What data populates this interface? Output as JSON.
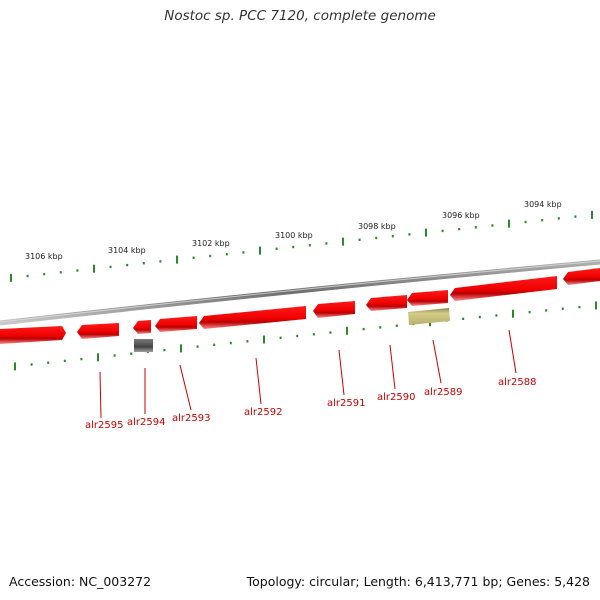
{
  "title": "Nostoc sp. PCC 7120, complete genome",
  "footer": {
    "accession": "Accession: NC_003272",
    "summary": "Topology: circular; Length: 6,413,771 bp; Genes: 5,428"
  },
  "colors": {
    "gene": "#ff0000",
    "backbone": "#7a7a7a",
    "ticks": "#2a8a2a",
    "gene_label": "#cc0000",
    "pseudo_gray": "#5a5a5a",
    "pseudo_olive": "#c8c27a"
  },
  "scale_labels": [
    {
      "text": "3106 kbp"
    },
    {
      "text": "3104 kbp"
    },
    {
      "text": "3102 kbp"
    },
    {
      "text": "3100 kbp"
    },
    {
      "text": "3098 kbp"
    },
    {
      "text": "3096 kbp"
    },
    {
      "text": "3094 kbp"
    }
  ],
  "gene_labels": [
    {
      "text": "alr2595"
    },
    {
      "text": "alr2594"
    },
    {
      "text": "alr2593"
    },
    {
      "text": "alr2592"
    },
    {
      "text": "alr2591"
    },
    {
      "text": "alr2590"
    },
    {
      "text": "alr2589"
    },
    {
      "text": "alr2588"
    }
  ]
}
